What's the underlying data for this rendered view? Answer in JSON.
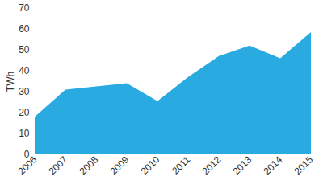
{
  "chart_data": {
    "type": "area",
    "categories": [
      "2006",
      "2007",
      "2008",
      "2009",
      "2010",
      "2011",
      "2012",
      "2013",
      "2014",
      "2015"
    ],
    "values": [
      18,
      31,
      32.5,
      34,
      25.5,
      37,
      47,
      52,
      46,
      58.5
    ],
    "color": "#29abe2",
    "y_label": "TWh",
    "ylim": [
      0,
      70
    ],
    "yticks": [
      0,
      10,
      20,
      30,
      40,
      50,
      60,
      70
    ],
    "grid": false
  }
}
